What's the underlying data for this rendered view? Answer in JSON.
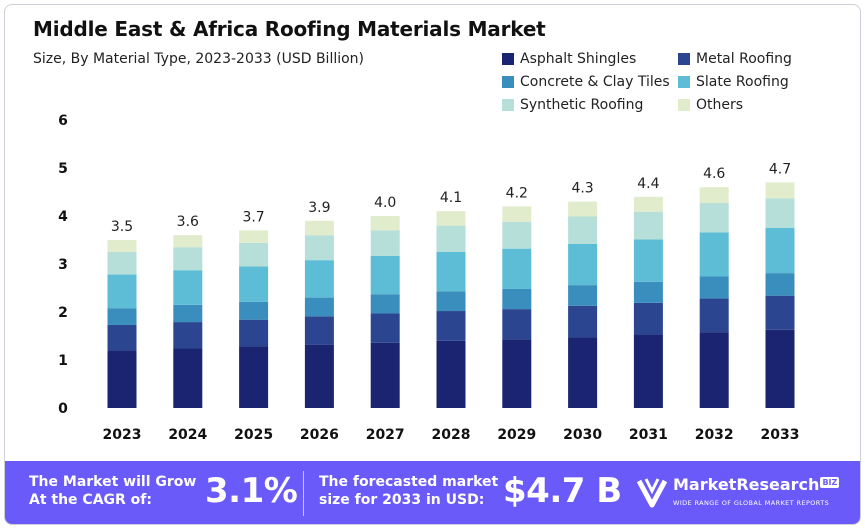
{
  "colors": {
    "asphalt": "#1a2470",
    "metal": "#2b4591",
    "concrete": "#3a8ebd",
    "slate": "#5dbdd6",
    "synthetic": "#b6dfd9",
    "others": "#e1eccd",
    "footer": "#6a5af9"
  },
  "chart_data": {
    "type": "bar",
    "stacked": true,
    "title": "Middle East & Africa Roofing Materials Market",
    "subtitle": "Size, By Material Type, 2023-2033 (USD Billion)",
    "categories": [
      "2023",
      "2024",
      "2025",
      "2026",
      "2027",
      "2028",
      "2029",
      "2030",
      "2031",
      "2032",
      "2033"
    ],
    "totals": [
      "3.5",
      "3.6",
      "3.7",
      "3.9",
      "4.0",
      "4.1",
      "4.2",
      "4.3",
      "4.4",
      "4.6",
      "4.7"
    ],
    "ylim": [
      0,
      6
    ],
    "yticks": [
      "0",
      "1",
      "2",
      "3",
      "4",
      "5",
      "6"
    ],
    "legend_position": "top-right",
    "series": [
      {
        "name": "Asphalt Shingles",
        "color_key": "asphalt",
        "values": [
          1.2,
          1.24,
          1.28,
          1.32,
          1.36,
          1.4,
          1.43,
          1.47,
          1.53,
          1.58,
          1.63
        ]
      },
      {
        "name": "Metal Roofing",
        "color_key": "metal",
        "values": [
          0.53,
          0.55,
          0.56,
          0.59,
          0.61,
          0.62,
          0.63,
          0.66,
          0.66,
          0.7,
          0.71
        ]
      },
      {
        "name": "Concrete & Clay Tiles",
        "color_key": "concrete",
        "values": [
          0.35,
          0.36,
          0.37,
          0.39,
          0.4,
          0.41,
          0.42,
          0.43,
          0.44,
          0.46,
          0.47
        ]
      },
      {
        "name": "Slate Roofing",
        "color_key": "slate",
        "values": [
          0.7,
          0.72,
          0.74,
          0.78,
          0.8,
          0.82,
          0.84,
          0.86,
          0.88,
          0.92,
          0.94
        ]
      },
      {
        "name": "Synthetic Roofing",
        "color_key": "synthetic",
        "values": [
          0.47,
          0.48,
          0.49,
          0.52,
          0.53,
          0.55,
          0.56,
          0.57,
          0.58,
          0.61,
          0.62
        ]
      },
      {
        "name": "Others",
        "color_key": "others",
        "values": [
          0.25,
          0.25,
          0.26,
          0.3,
          0.3,
          0.3,
          0.32,
          0.31,
          0.31,
          0.33,
          0.33
        ]
      }
    ]
  },
  "footer": {
    "cagr_label_line1": "The Market will Grow",
    "cagr_label_line2": "At the CAGR of:",
    "cagr_value": "3.1%",
    "forecast_label_line1": "The forecasted market",
    "forecast_label_line2": "size for 2033 in USD:",
    "forecast_value": "$4.7 B",
    "brand_name": "MarketResearch",
    "brand_badge": "BIZ",
    "brand_tagline": "WIDE RANGE OF GLOBAL MARKET REPORTS"
  }
}
